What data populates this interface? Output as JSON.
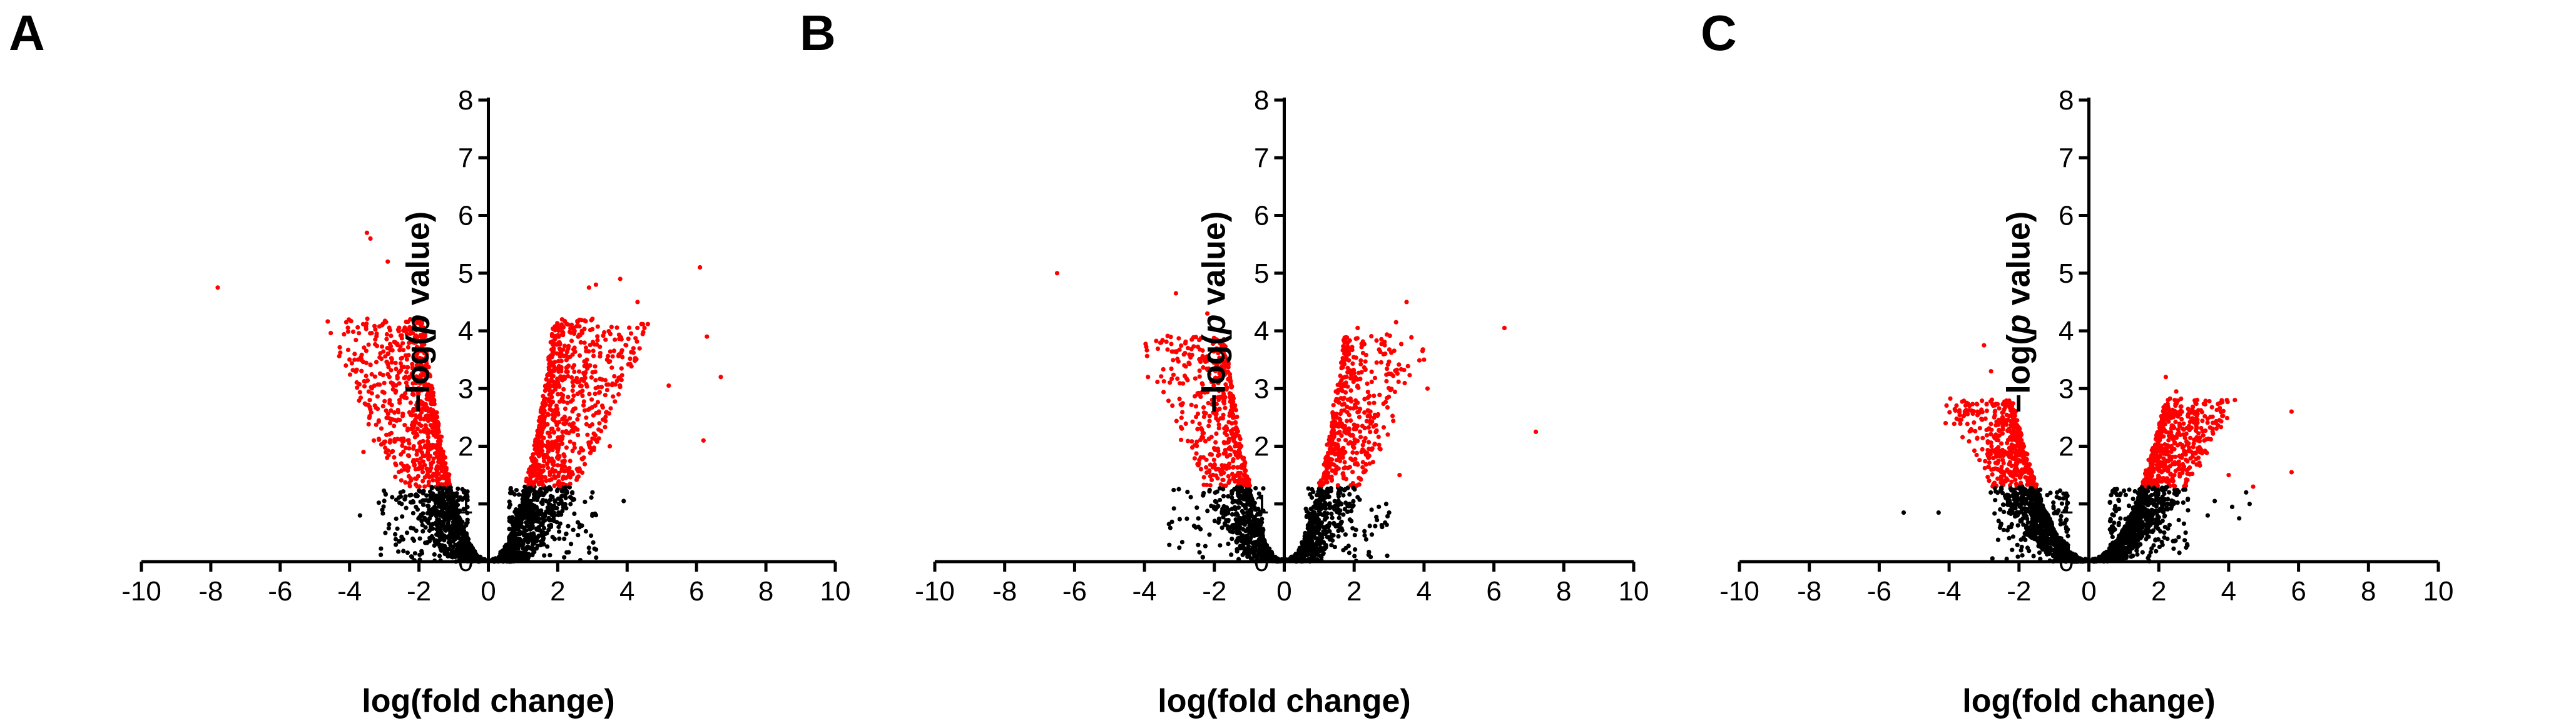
{
  "figure": {
    "background": "#ffffff"
  },
  "chart_data": [
    {
      "panel": "A",
      "type": "scatter",
      "xlabel": "log(fold change)",
      "ylabel_prefix": "−log(",
      "ylabel_italic": "p",
      "ylabel_suffix": " value)",
      "xlim": [
        -10,
        10
      ],
      "ylim": [
        0,
        8
      ],
      "xticks": [
        -10,
        -8,
        -6,
        -4,
        -2,
        0,
        2,
        4,
        6,
        8,
        10
      ],
      "yticks": [
        0,
        1,
        2,
        3,
        4,
        5,
        6,
        7,
        8
      ],
      "significance_threshold": 1.3,
      "colors": {
        "significant": "#ff0000",
        "not_significant": "#000000"
      },
      "outliers": [
        [
          -7.8,
          4.75
        ],
        [
          -3.5,
          5.7
        ],
        [
          -3.4,
          5.6
        ],
        [
          -2.9,
          5.2
        ],
        [
          -3.7,
          0.8
        ],
        [
          -3.6,
          1.9
        ],
        [
          -3.3,
          2.1
        ],
        [
          6.1,
          5.1
        ],
        [
          6.3,
          3.9
        ],
        [
          6.7,
          3.2
        ],
        [
          6.2,
          2.1
        ],
        [
          5.2,
          3.05
        ],
        [
          4.3,
          4.5
        ],
        [
          4.5,
          4.05
        ],
        [
          3.8,
          4.9
        ],
        [
          3.1,
          4.8
        ],
        [
          2.9,
          4.75
        ],
        [
          3.9,
          1.05
        ],
        [
          3.0,
          1.2
        ],
        [
          -2.5,
          1.0
        ],
        [
          2.4,
          1.1
        ],
        [
          3.5,
          2.0
        ]
      ],
      "cloud": {
        "n": 2600,
        "amax": 4.2,
        "aspread": 2.0,
        "coef": 2.5,
        "spread": 0.8
      }
    },
    {
      "panel": "B",
      "type": "scatter",
      "xlabel": "log(fold change)",
      "ylabel_prefix": "−log(",
      "ylabel_italic": "p",
      "ylabel_suffix": " value)",
      "xlim": [
        -10,
        10
      ],
      "ylim": [
        0,
        8
      ],
      "xticks": [
        -10,
        -8,
        -6,
        -4,
        -2,
        0,
        2,
        4,
        6,
        8,
        10
      ],
      "yticks": [
        0,
        1,
        2,
        3,
        4,
        5,
        6,
        7,
        8
      ],
      "significance_threshold": 1.3,
      "colors": {
        "significant": "#ff0000",
        "not_significant": "#000000"
      },
      "outliers": [
        [
          -6.5,
          5.0
        ],
        [
          -3.1,
          4.65
        ],
        [
          -2.2,
          4.3
        ],
        [
          -3.3,
          0.65
        ],
        [
          -3.9,
          3.2
        ],
        [
          6.3,
          4.05
        ],
        [
          7.2,
          2.25
        ],
        [
          3.5,
          4.5
        ],
        [
          3.2,
          4.15
        ],
        [
          2.1,
          4.05
        ],
        [
          4.0,
          3.5
        ],
        [
          4.1,
          3.0
        ],
        [
          3.3,
          1.5
        ],
        [
          3.0,
          0.85
        ],
        [
          2.5,
          0.9
        ],
        [
          2.8,
          0.6
        ]
      ],
      "cloud": {
        "n": 1700,
        "amax": 3.9,
        "aspread": 1.7,
        "coef": 2.9,
        "spread": 0.85
      }
    },
    {
      "panel": "C",
      "type": "scatter",
      "xlabel": "log(fold change)",
      "ylabel_prefix": "−log(",
      "ylabel_italic": "p",
      "ylabel_suffix": " value)",
      "xlim": [
        -10,
        10
      ],
      "ylim": [
        0,
        8
      ],
      "xticks": [
        -10,
        -8,
        -6,
        -4,
        -2,
        0,
        2,
        4,
        6,
        8,
        10
      ],
      "yticks": [
        0,
        1,
        2,
        3,
        4,
        5,
        6,
        7,
        8
      ],
      "significance_threshold": 1.3,
      "colors": {
        "significant": "#ff0000",
        "not_significant": "#000000"
      },
      "outliers": [
        [
          -5.3,
          0.85
        ],
        [
          -4.3,
          0.85
        ],
        [
          -4.1,
          2.4
        ],
        [
          -3.0,
          3.75
        ],
        [
          -2.8,
          3.3
        ],
        [
          5.8,
          2.6
        ],
        [
          5.8,
          1.55
        ],
        [
          4.7,
          1.3
        ],
        [
          4.5,
          1.2
        ],
        [
          4.6,
          1.0
        ],
        [
          4.3,
          0.75
        ],
        [
          4.0,
          1.5
        ],
        [
          4.1,
          0.95
        ],
        [
          3.6,
          1.05
        ],
        [
          3.4,
          0.8
        ],
        [
          2.9,
          2.6
        ],
        [
          2.2,
          3.2
        ],
        [
          3.3,
          2.1
        ],
        [
          2.5,
          2.95
        ]
      ],
      "cloud": {
        "n": 2400,
        "amax": 2.8,
        "aspread": 1.4,
        "coef": 1.25,
        "spread": 0.7
      }
    }
  ]
}
